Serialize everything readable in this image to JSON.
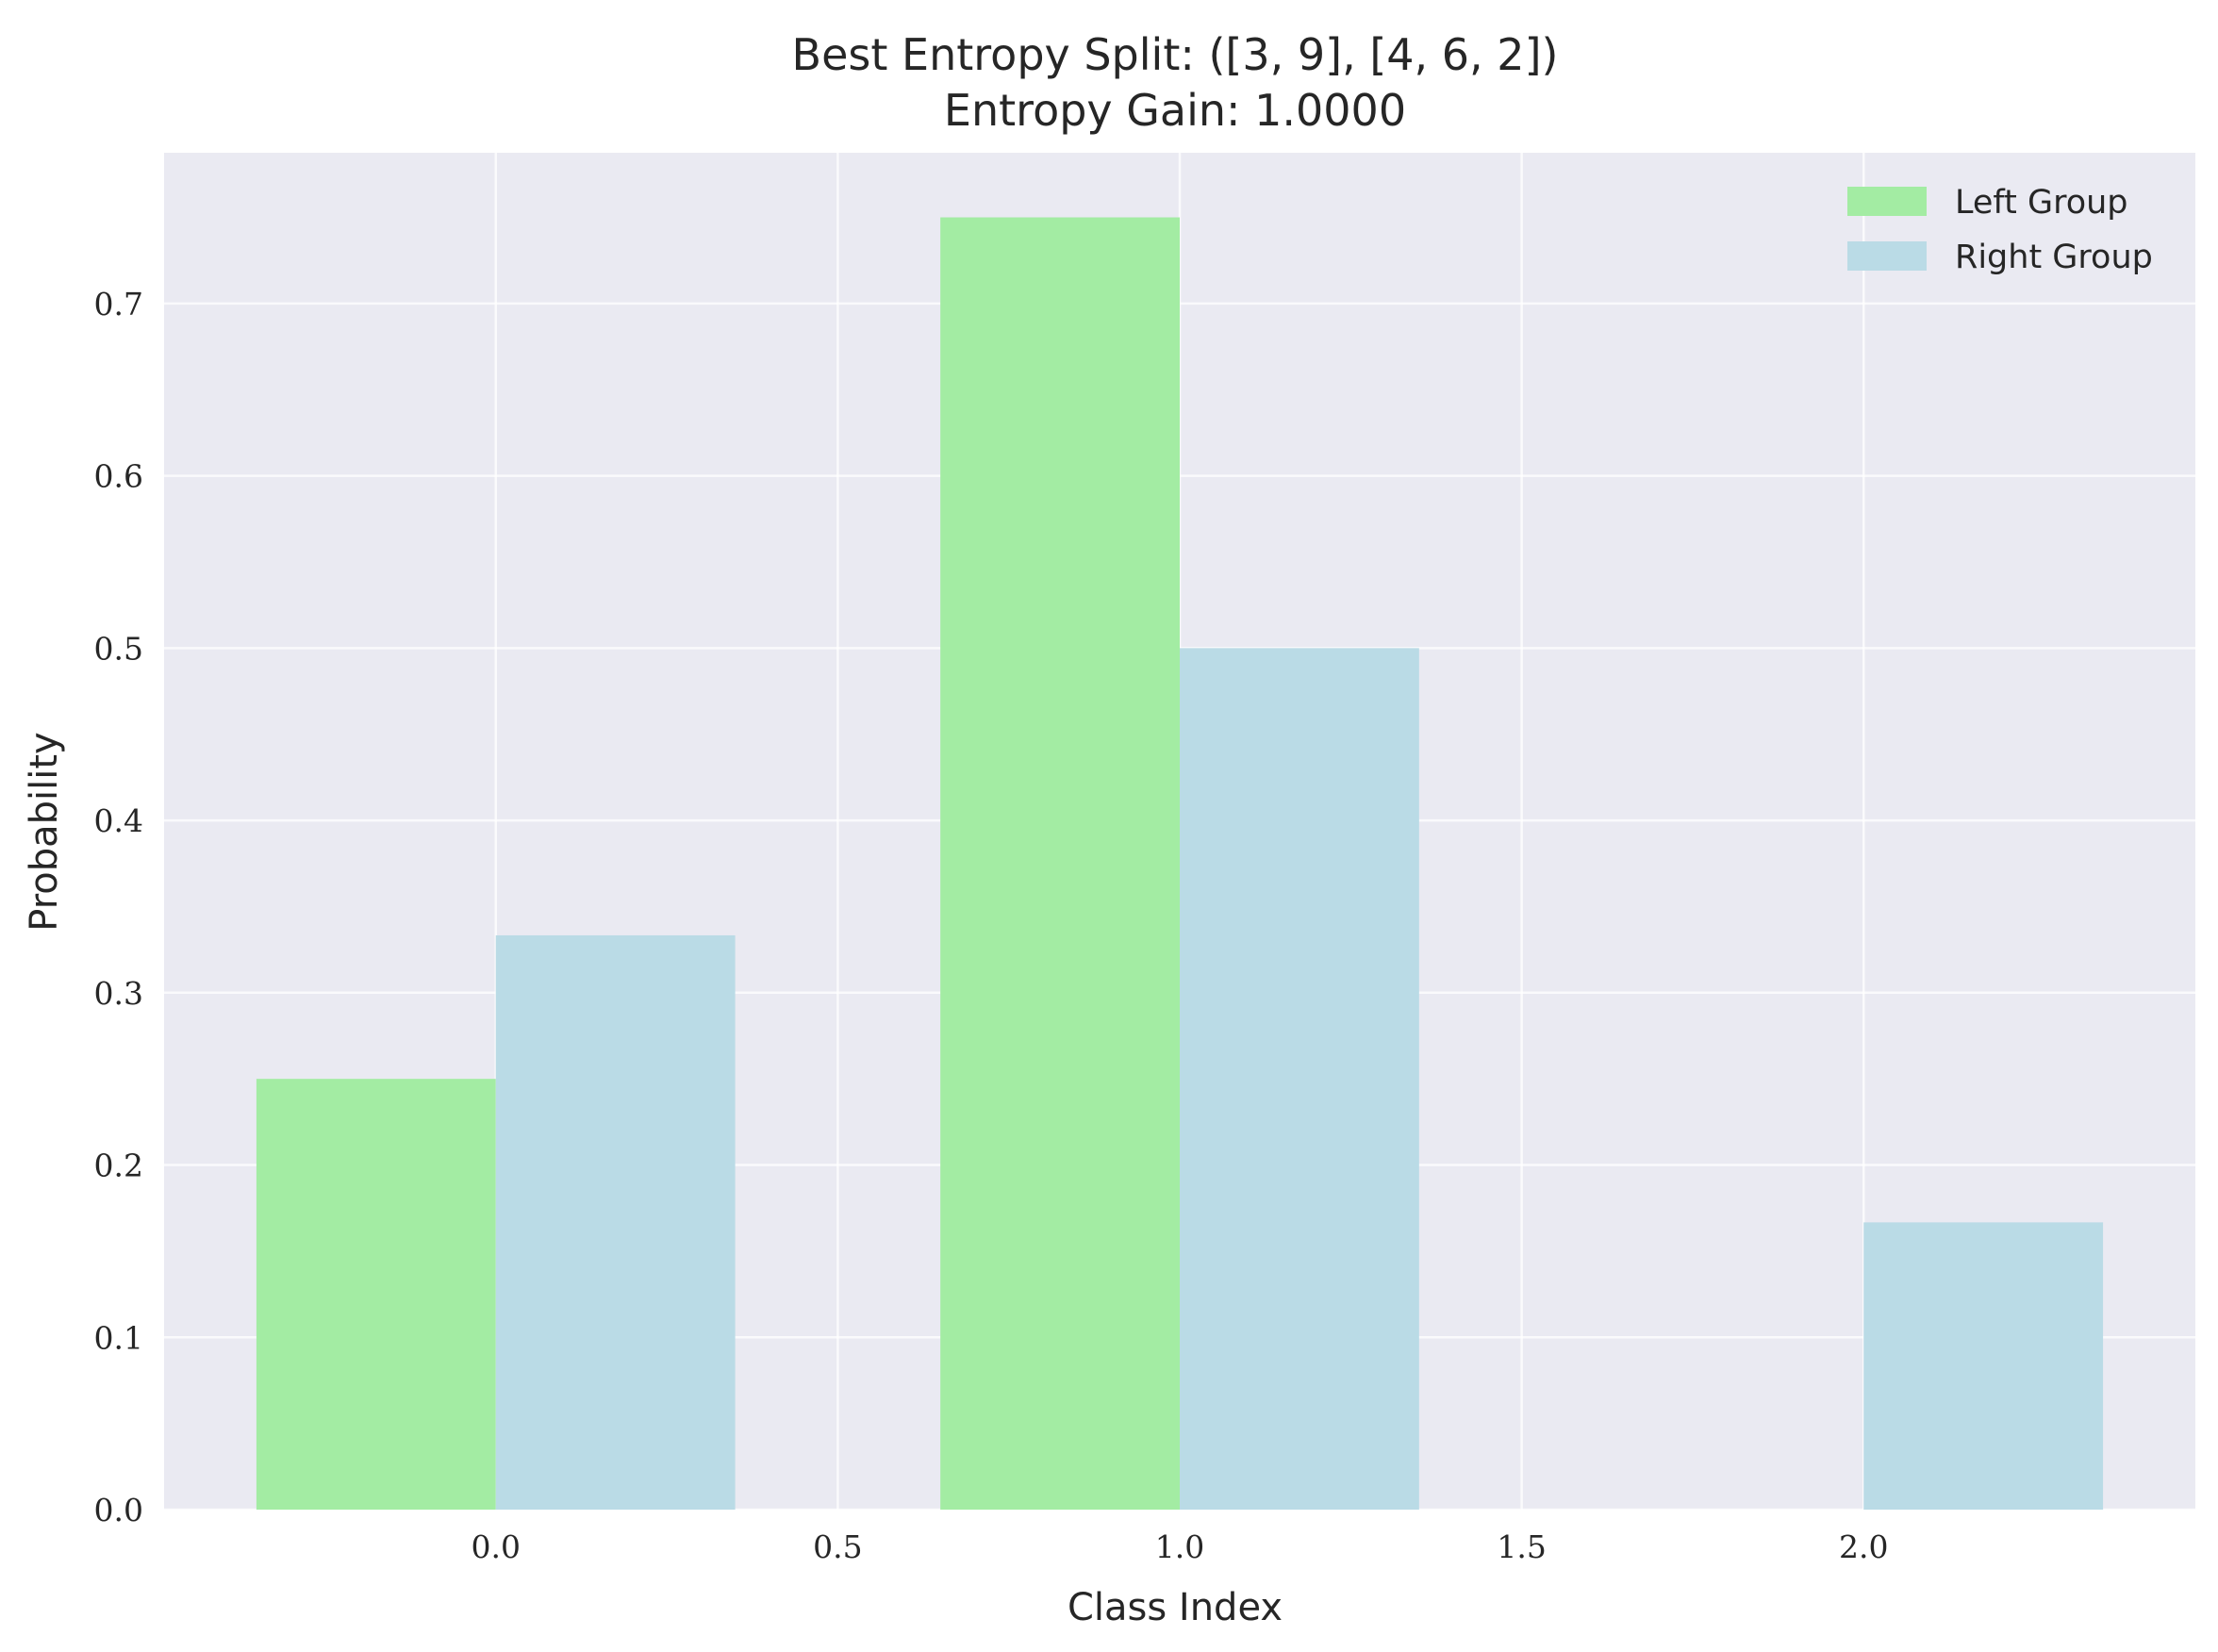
{
  "chart_data": {
    "type": "bar",
    "title_lines": [
      "Best Entropy Split: ([3, 9], [4, 6, 2])",
      "Entropy Gain: 1.0000"
    ],
    "xlabel": "Class Index",
    "ylabel": "Probability",
    "xlim": [
      -0.485,
      2.485
    ],
    "ylim": [
      0,
      0.7875
    ],
    "x_ticks": [
      0.0,
      0.5,
      1.0,
      1.5,
      2.0
    ],
    "x_tick_labels": [
      "0.0",
      "0.5",
      "1.0",
      "1.5",
      "2.0"
    ],
    "y_ticks": [
      0.0,
      0.1,
      0.2,
      0.3,
      0.4,
      0.5,
      0.6,
      0.7
    ],
    "y_tick_labels": [
      "0.0",
      "0.1",
      "0.2",
      "0.3",
      "0.4",
      "0.5",
      "0.6",
      "0.7"
    ],
    "bar_width": 0.35,
    "grid": true,
    "legend_position": "top-right",
    "series": [
      {
        "name": "Left Group",
        "color": "#a3eca3",
        "offset": -0.175,
        "x": [
          0,
          1,
          2
        ],
        "values": [
          0.25,
          0.75,
          0.0
        ]
      },
      {
        "name": "Right Group",
        "color": "#badbe6",
        "offset": 0.175,
        "x": [
          0,
          1,
          2
        ],
        "values": [
          0.3333,
          0.5,
          0.1667
        ]
      }
    ],
    "colors": {
      "plot_background": "#eaeaf2",
      "grid": "#ffffff",
      "text": "#262626"
    }
  }
}
